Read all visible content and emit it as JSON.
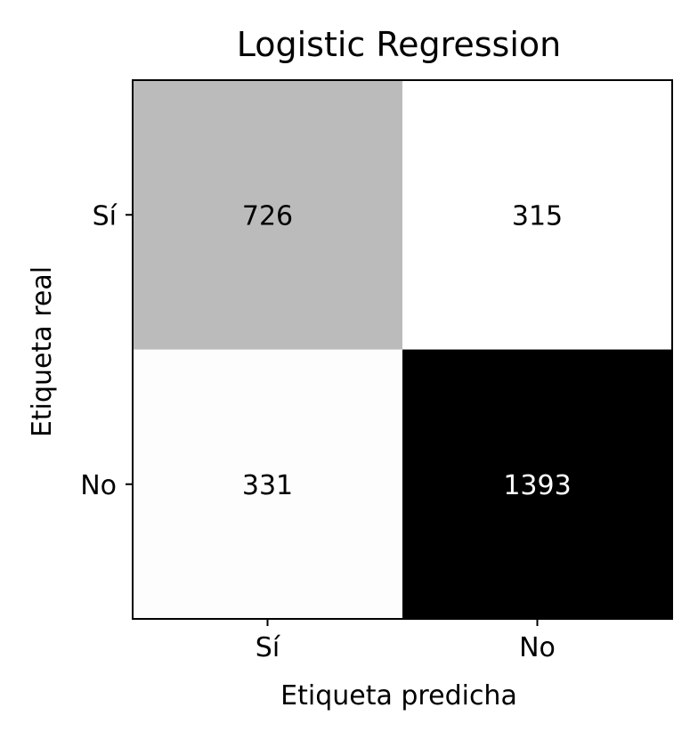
{
  "chart_data": {
    "type": "heatmap",
    "title": "Logistic Regression",
    "xlabel": "Etiqueta predicha",
    "ylabel": "Etiqueta real",
    "x_categories": [
      "Sí",
      "No"
    ],
    "y_categories": [
      "Sí",
      "No"
    ],
    "values": [
      [
        726,
        315
      ],
      [
        331,
        1393
      ]
    ],
    "colormap": "Greys",
    "grid": false
  },
  "colors": {
    "text_dark": "#000000",
    "text_light": "#ffffff"
  }
}
